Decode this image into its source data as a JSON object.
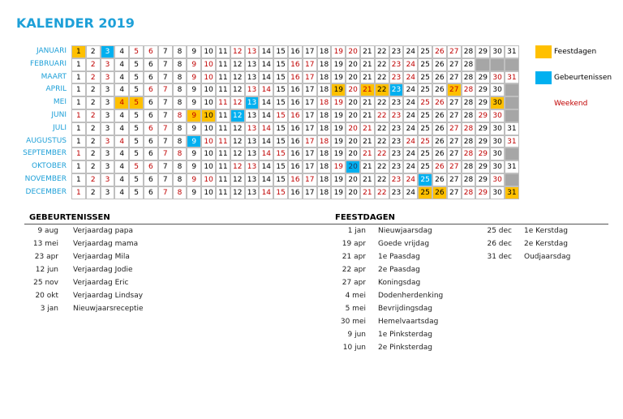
{
  "title": "KALENDER 2019",
  "legend": [
    {
      "label": "Feestdagen",
      "color": "#ffc000"
    },
    {
      "label": "Gebeurtenissen",
      "color": "#00b0f0"
    },
    {
      "label": "Weekend",
      "color": "#c00000"
    }
  ],
  "styles": {
    "n": {
      "bg": "#ffffff",
      "fg": "#000000"
    },
    "w": {
      "bg": "#ffffff",
      "fg": "#c00000"
    },
    "h": {
      "bg": "#ffc000",
      "fg": "#000000"
    },
    "H": {
      "bg": "#ffc000",
      "fg": "#c00000"
    },
    "e": {
      "bg": "#00b0f0",
      "fg": "#ffffff"
    },
    "E": {
      "bg": "#00b0f0",
      "fg": "#1f3864"
    }
  },
  "months": [
    {
      "name": "JANUARI",
      "days": [
        1,
        2,
        3,
        4,
        5,
        6,
        7,
        8,
        9,
        10,
        11,
        12,
        13,
        14,
        15,
        16,
        17,
        18,
        19,
        20,
        21,
        22,
        23,
        24,
        25,
        26,
        27,
        28,
        29,
        30,
        31
      ],
      "day_styles": "hnenwwnnnnnwwnnnnnwwnnnnnwwnnnn"
    },
    {
      "name": "FEBRUARI",
      "days": [
        1,
        2,
        3,
        4,
        5,
        6,
        7,
        8,
        9,
        10,
        11,
        12,
        13,
        14,
        15,
        16,
        17,
        18,
        19,
        20,
        21,
        22,
        23,
        24,
        25,
        26,
        27,
        28
      ],
      "day_styles": "nwwnnnnnwwnnnnnwwnnnnnwwnnnn"
    },
    {
      "name": "MAART",
      "days": [
        1,
        2,
        3,
        4,
        5,
        6,
        7,
        8,
        9,
        10,
        11,
        12,
        13,
        14,
        15,
        16,
        17,
        18,
        19,
        20,
        21,
        22,
        23,
        24,
        25,
        26,
        27,
        28,
        29,
        30,
        31
      ],
      "day_styles": "nwwnnnnnwwnnnnnwwnnnnnwwnnnnnww"
    },
    {
      "name": "APRIL",
      "days": [
        1,
        2,
        3,
        4,
        5,
        6,
        7,
        8,
        9,
        10,
        11,
        12,
        13,
        14,
        15,
        16,
        17,
        18,
        19,
        20,
        21,
        22,
        23,
        24,
        25,
        26,
        27,
        28,
        29,
        30
      ],
      "day_styles": "nnnnnwwnnnnnwwnnnnhwHhennnHwnn"
    },
    {
      "name": "MEI",
      "days": [
        1,
        2,
        3,
        4,
        5,
        6,
        7,
        8,
        9,
        10,
        11,
        12,
        13,
        14,
        15,
        16,
        17,
        18,
        19,
        20,
        21,
        22,
        23,
        24,
        25,
        26,
        27,
        28,
        29,
        30
      ],
      "day_styles": "nnnHHnnnnnwwennnnwwnnnnnwwnnnh"
    },
    {
      "name": "JUNI",
      "days": [
        1,
        2,
        3,
        4,
        5,
        6,
        7,
        8,
        9,
        10,
        11,
        12,
        13,
        14,
        15,
        16,
        17,
        18,
        19,
        20,
        21,
        22,
        23,
        24,
        25,
        26,
        27,
        28,
        29,
        30
      ],
      "day_styles": "wwnnnnnwHhnennwwnnnnnwwnnnnnww"
    },
    {
      "name": "JULI",
      "days": [
        1,
        2,
        3,
        4,
        5,
        6,
        7,
        8,
        9,
        10,
        11,
        12,
        13,
        14,
        15,
        16,
        17,
        18,
        19,
        20,
        21,
        22,
        23,
        24,
        25,
        26,
        27,
        28,
        29,
        30,
        31
      ],
      "day_styles": "nnnnnwwnnnnnwwnnnnnwwnnnnnwwnnn"
    },
    {
      "name": "AUGUSTUS",
      "days": [
        1,
        2,
        3,
        4,
        5,
        6,
        7,
        8,
        9,
        10,
        11,
        12,
        13,
        14,
        15,
        16,
        17,
        18,
        19,
        20,
        21,
        22,
        23,
        24,
        25,
        26,
        27,
        28,
        29,
        30,
        31
      ],
      "day_styles": "nnwwnnnnewwnnnnnwwnnnnnwwnnnnnw"
    },
    {
      "name": "SEPTEMBER",
      "days": [
        1,
        2,
        3,
        4,
        5,
        6,
        7,
        8,
        9,
        10,
        11,
        12,
        13,
        14,
        15,
        16,
        17,
        18,
        19,
        20,
        21,
        22,
        23,
        24,
        25,
        26,
        27,
        28,
        29,
        30
      ],
      "day_styles": "wnnnnnwwnnnnnwwnnnnnwwnnnnnwwn"
    },
    {
      "name": "OKTOBER",
      "days": [
        1,
        2,
        3,
        4,
        5,
        6,
        7,
        8,
        9,
        10,
        11,
        12,
        13,
        14,
        15,
        16,
        17,
        18,
        19,
        20,
        21,
        22,
        23,
        24,
        25,
        26,
        27,
        28,
        29,
        30,
        31
      ],
      "day_styles": "nnnnwwnnnnnwwnnnnnwEnnnnnwwnnnn"
    },
    {
      "name": "NOVEMBER",
      "days": [
        1,
        2,
        3,
        4,
        5,
        6,
        7,
        8,
        9,
        10,
        11,
        12,
        13,
        14,
        15,
        16,
        17,
        18,
        19,
        20,
        21,
        22,
        23,
        24,
        25,
        26,
        27,
        28,
        29,
        30
      ],
      "day_styles": "nwwnnnnnwwnnnnnwwnnnnnwwennnnw"
    },
    {
      "name": "DECEMBER",
      "days": [
        1,
        2,
        3,
        4,
        5,
        6,
        7,
        8,
        9,
        10,
        11,
        12,
        13,
        14,
        15,
        16,
        17,
        18,
        19,
        20,
        21,
        22,
        23,
        24,
        25,
        26,
        27,
        28,
        29,
        30,
        31
      ],
      "day_styles": "wnnnnnwwnnnnnwwnnnnnwwnnhhnwwnh"
    }
  ],
  "events": {
    "heading": "GEBEURTENISSEN",
    "rows": [
      [
        "9 aug",
        "Verjaardag papa"
      ],
      [
        "13 mei",
        "Verjaardag mama"
      ],
      [
        "23 apr",
        "Verjaardag Mila"
      ],
      [
        "12 jun",
        "Verjaardag Jodie"
      ],
      [
        "25 nov",
        "Verjaardag Eric"
      ],
      [
        "20 okt",
        "Verjaardag Lindsay"
      ],
      [
        "3 jan",
        "Nieuwjaarsreceptie"
      ]
    ]
  },
  "holidays": {
    "heading": "FEESTDAGEN",
    "rows": [
      [
        "1 jan",
        "Nieuwjaarsdag"
      ],
      [
        "19 apr",
        "Goede vrijdag"
      ],
      [
        "21 apr",
        "1e Paasdag"
      ],
      [
        "22 apr",
        "2e Paasdag"
      ],
      [
        "27 apr",
        "Koningsdag"
      ],
      [
        "4 mei",
        "Dodenherdenking"
      ],
      [
        "5 mei",
        "Bevrijdingsdag"
      ],
      [
        "30 mei",
        "Hemelvaartsdag"
      ],
      [
        "9 jun",
        "1e Pinksterdag"
      ],
      [
        "10 jun",
        "2e Pinksterdag"
      ],
      [
        "25 dec",
        "1e Kerstdag"
      ],
      [
        "26 dec",
        "2e Kerstdag"
      ],
      [
        "31 dec",
        "Oudjaarsdag"
      ]
    ]
  }
}
